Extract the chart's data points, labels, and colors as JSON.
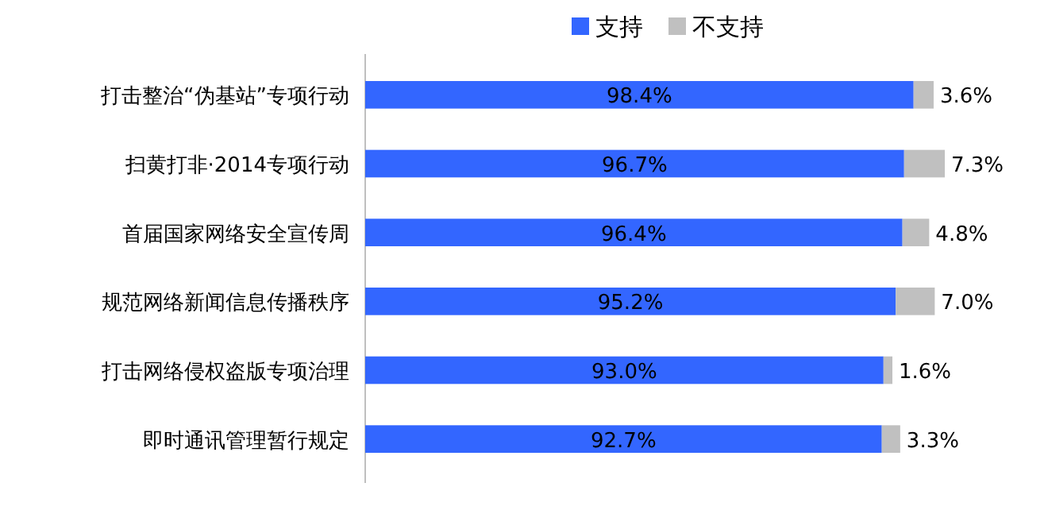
{
  "chart_data": {
    "type": "bar",
    "orientation": "horizontal",
    "stacked": true,
    "legend": "top",
    "categories": [
      "打击整治“伪基站”专项行动",
      "扫黄打非·2014专项行动",
      "首届国家网络安全宣传周",
      "规范网络新闻信息传播秩序",
      "打击网络侵权盗版专项治理",
      "即时通讯管理暂行规定"
    ],
    "series": [
      {
        "name": "支持",
        "color": "#3366ff",
        "values": [
          98.4,
          96.7,
          96.4,
          95.2,
          93.0,
          92.7
        ],
        "value_labels": [
          "98.4%",
          "96.7%",
          "96.4%",
          "95.2%",
          "93.0%",
          "92.7%"
        ]
      },
      {
        "name": "不支持",
        "color": "#c0c0c0",
        "values": [
          3.6,
          7.3,
          4.8,
          7.0,
          1.6,
          3.3
        ],
        "value_labels": [
          "3.6%",
          "7.3%",
          "4.8%",
          "7.0%",
          "1.6%",
          "3.3%"
        ]
      }
    ]
  }
}
